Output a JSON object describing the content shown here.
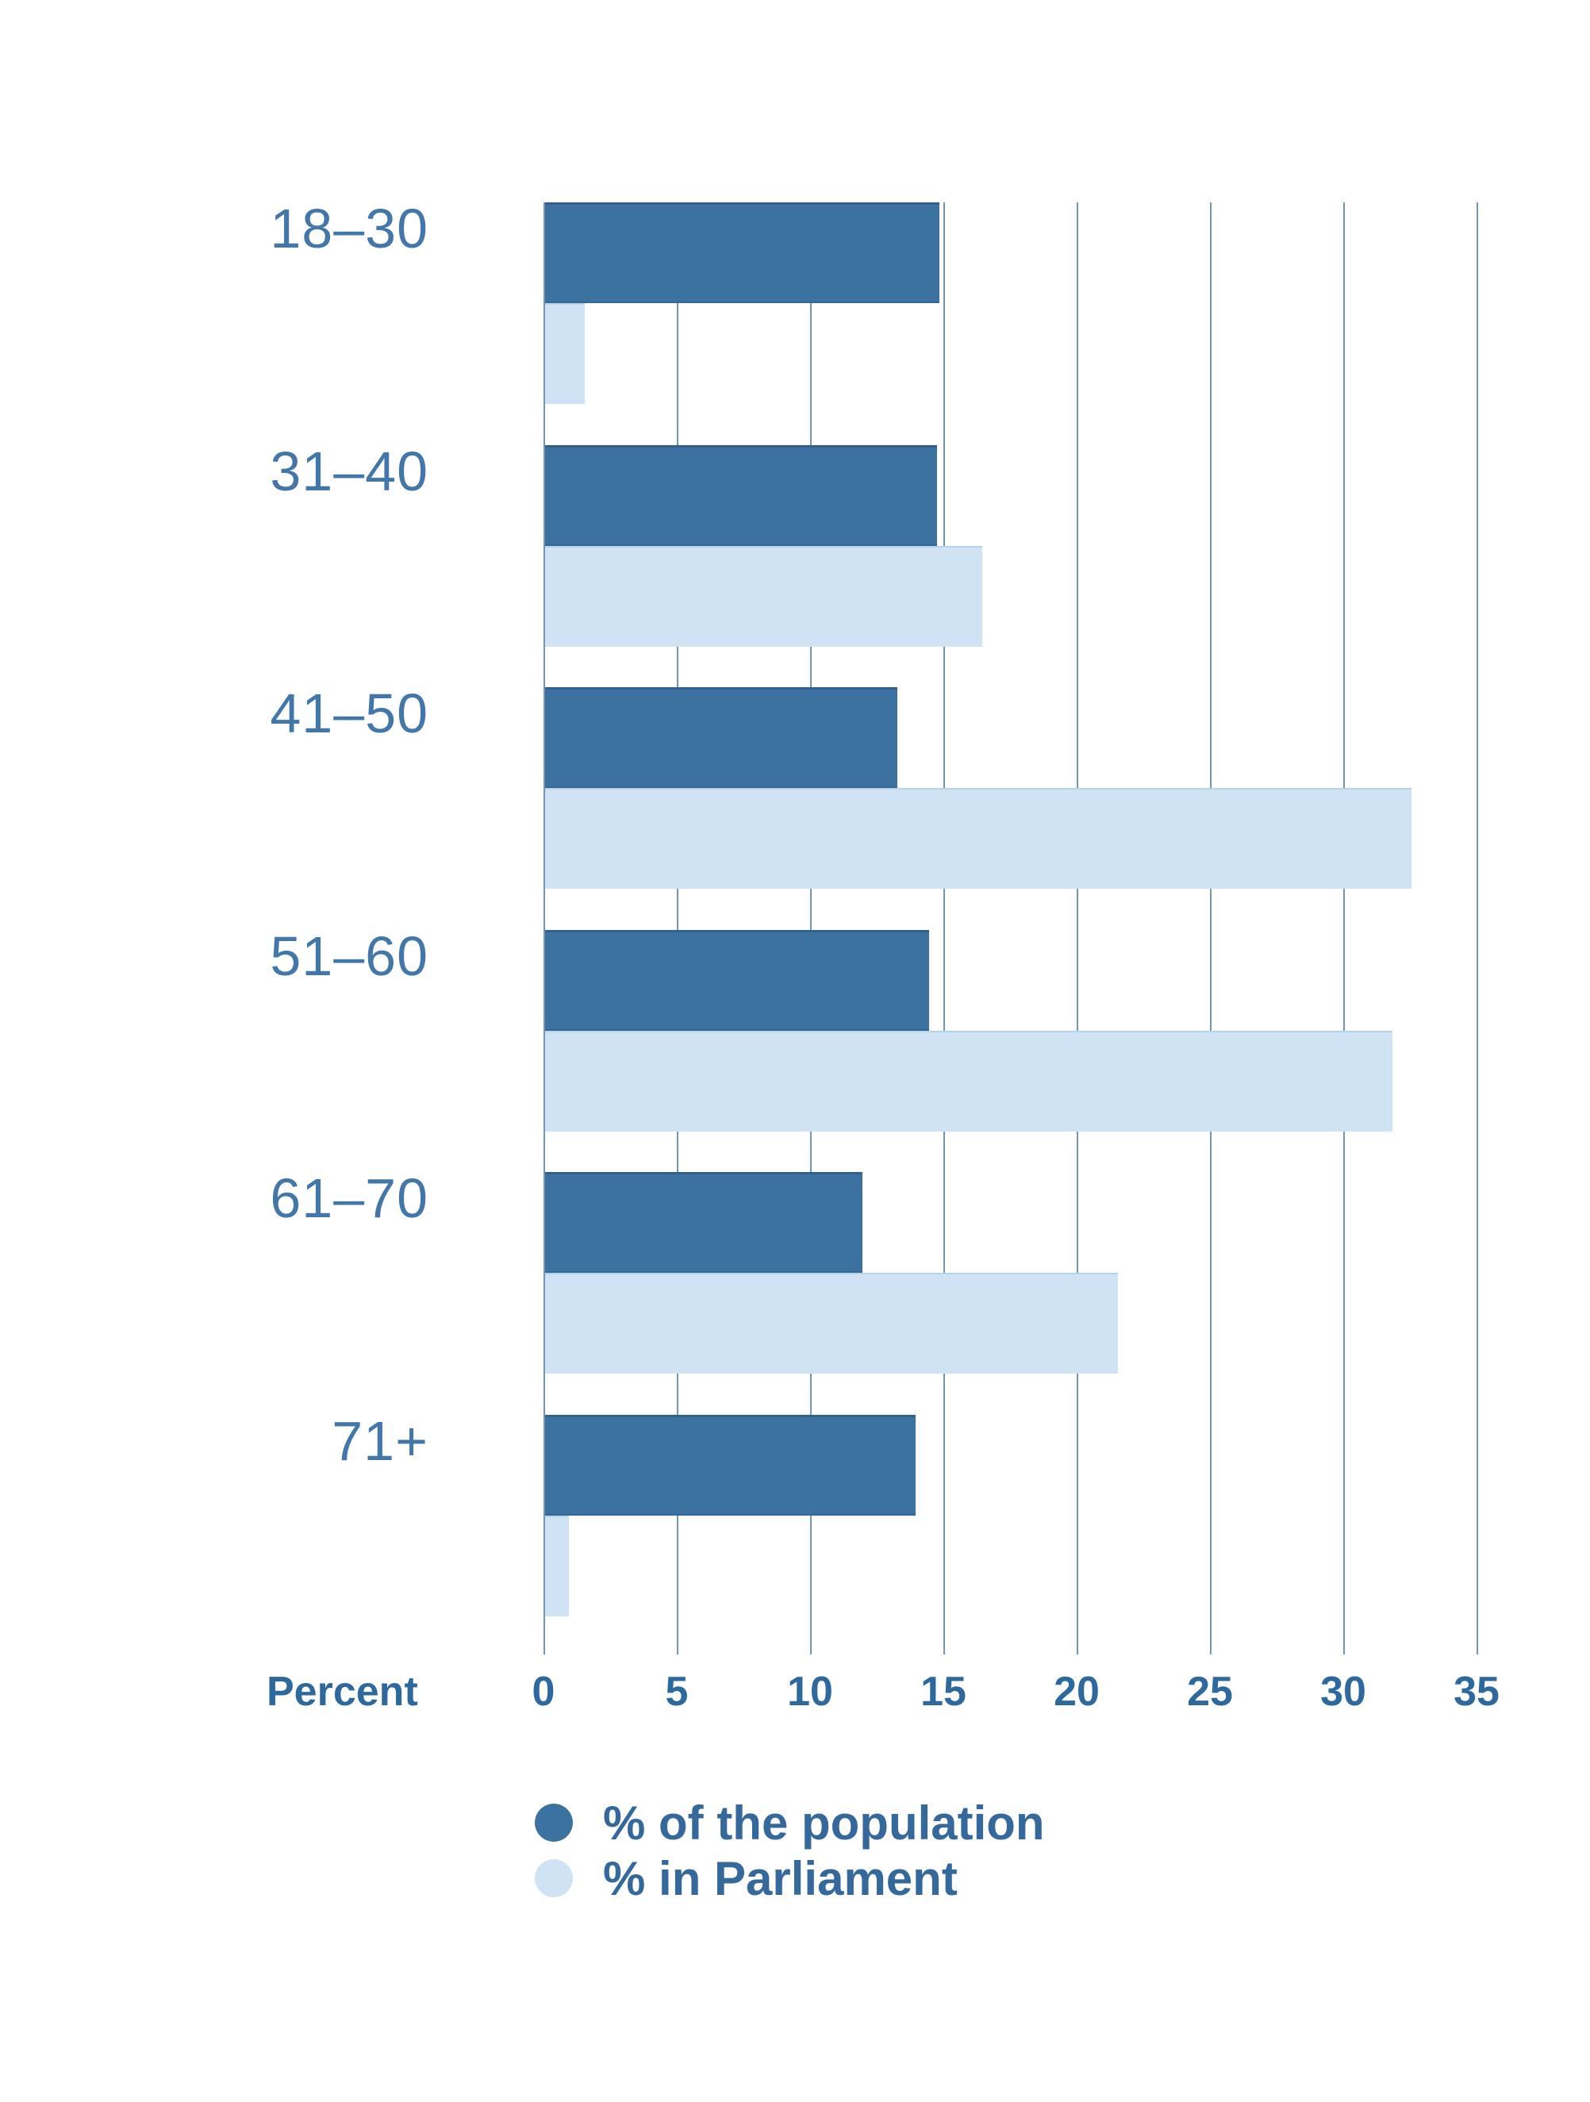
{
  "chart_data": {
    "type": "bar",
    "orientation": "horizontal",
    "title": "",
    "xlabel": "Percent",
    "categories": [
      "18–30",
      "31–40",
      "41–50",
      "51–60",
      "61–70",
      "71+"
    ],
    "series": [
      {
        "name": "% of the population",
        "color": "#3b72a0",
        "values": [
          14.8,
          14.7,
          13.2,
          14.4,
          11.9,
          13.9
        ]
      },
      {
        "name": "% in Parliament",
        "color": "#cfe3f5",
        "values": [
          1.5,
          16.4,
          32.5,
          31.8,
          21.5,
          0.9
        ]
      }
    ],
    "x_ticks": [
      0,
      5,
      10,
      15,
      20,
      25,
      30,
      35
    ],
    "xlim": [
      0,
      36.6
    ],
    "grid": "vertical-only",
    "legend_position": "bottom-left"
  },
  "colors": {
    "background": "#ffffff",
    "population_bar": "#3b72a0",
    "parliament_bar": "#cfe3f5",
    "gridline": "#7096ba",
    "category_label": "#4377aa",
    "tick_label": "#2e699e",
    "axis_title": "#2e699e",
    "legend_text": "#35699c"
  }
}
